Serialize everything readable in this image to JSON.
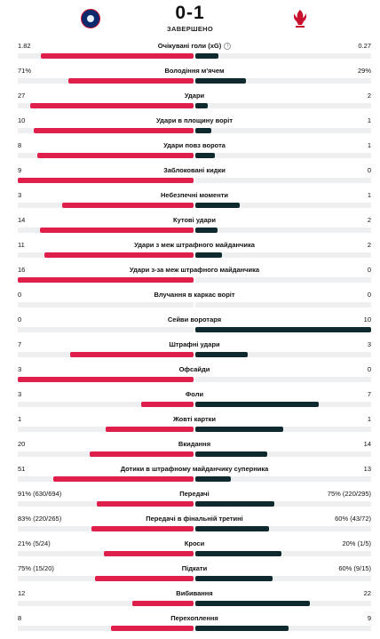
{
  "match": {
    "score": "0-1",
    "status": "ЗАВЕРШЕНО",
    "home_crest": "psg-crest-icon",
    "away_crest": "liverpool-crest-icon"
  },
  "colors": {
    "home": "#e01e4b",
    "away": "#0e2a2f",
    "track": "#eeeff1"
  },
  "stats": [
    {
      "name": "Очікувані голи (xG)",
      "home": "1.82",
      "away": "0.27",
      "home_share": 0.87,
      "away_share": 0.13,
      "info": true
    },
    {
      "name": "Володіння м'ячем",
      "home": "71%",
      "away": "29%",
      "home_share": 0.71,
      "away_share": 0.29
    },
    {
      "name": "Удари",
      "home": "27",
      "away": "2",
      "home_share": 0.93,
      "away_share": 0.07
    },
    {
      "name": "Удари в площину воріт",
      "home": "10",
      "away": "1",
      "home_share": 0.91,
      "away_share": 0.09
    },
    {
      "name": "Удари повз ворота",
      "home": "8",
      "away": "1",
      "home_share": 0.89,
      "away_share": 0.11
    },
    {
      "name": "Заблоковані кидки",
      "home": "9",
      "away": "0",
      "home_share": 1,
      "away_share": 0
    },
    {
      "name": "Небезпечні моменти",
      "home": "3",
      "away": "1",
      "home_share": 0.75,
      "away_share": 0.25
    },
    {
      "name": "Кутові удари",
      "home": "14",
      "away": "2",
      "home_share": 0.875,
      "away_share": 0.125
    },
    {
      "name": "Удари з меж штрафного майданчика",
      "home": "11",
      "away": "2",
      "home_share": 0.85,
      "away_share": 0.15
    },
    {
      "name": "Удари з-за меж штрафного майданчика",
      "home": "16",
      "away": "0",
      "home_share": 1,
      "away_share": 0
    },
    {
      "name": "Влучання в каркас воріт",
      "home": "0",
      "away": "0",
      "home_share": 0,
      "away_share": 0
    },
    {
      "name": "Сейви воротаря",
      "home": "0",
      "away": "10",
      "home_share": 0,
      "away_share": 1
    },
    {
      "name": "Штрафні удари",
      "home": "7",
      "away": "3",
      "home_share": 0.7,
      "away_share": 0.3
    },
    {
      "name": "Офсайди",
      "home": "3",
      "away": "0",
      "home_share": 1,
      "away_share": 0
    },
    {
      "name": "Фоли",
      "home": "3",
      "away": "7",
      "home_share": 0.3,
      "away_share": 0.7
    },
    {
      "name": "Жовті картки",
      "home": "1",
      "away": "1",
      "home_share": 0.5,
      "away_share": 0.5
    },
    {
      "name": "Вкидання",
      "home": "20",
      "away": "14",
      "home_share": 0.59,
      "away_share": 0.41
    },
    {
      "name": "Дотики в штрафному майданчику суперника",
      "home": "51",
      "away": "13",
      "home_share": 0.8,
      "away_share": 0.2
    },
    {
      "name": "Передачі",
      "home": "91% (630/694)",
      "away": "75% (220/295)",
      "home_share": 0.55,
      "away_share": 0.45
    },
    {
      "name": "Передачі в фінальній третині",
      "home": "83% (220/265)",
      "away": "60% (43/72)",
      "home_share": 0.58,
      "away_share": 0.42
    },
    {
      "name": "Кроси",
      "home": "21% (5/24)",
      "away": "20% (1/5)",
      "home_share": 0.51,
      "away_share": 0.49
    },
    {
      "name": "Підкати",
      "home": "75% (15/20)",
      "away": "60% (9/15)",
      "home_share": 0.56,
      "away_share": 0.44
    },
    {
      "name": "Вибивання",
      "home": "12",
      "away": "22",
      "home_share": 0.35,
      "away_share": 0.65
    },
    {
      "name": "Перехоплення",
      "home": "8",
      "away": "9",
      "home_share": 0.47,
      "away_share": 0.53
    }
  ]
}
